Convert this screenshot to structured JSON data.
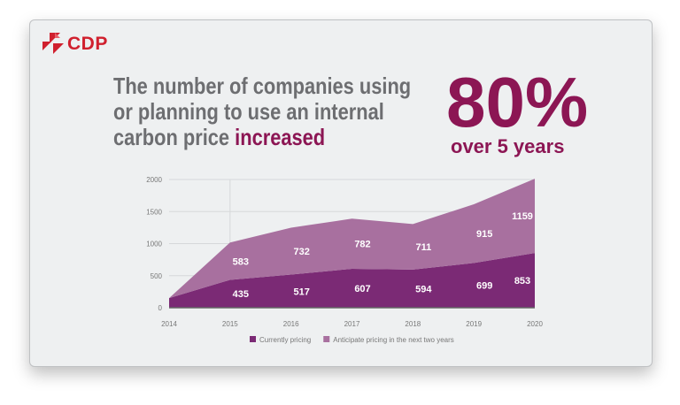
{
  "logo": {
    "text": "CDP",
    "color": "#d0202e"
  },
  "headline": {
    "text": "The number of companies using or planning to use an internal carbon price ",
    "emphasis": "increased"
  },
  "stat": {
    "value": "80%",
    "caption": "over 5 years",
    "color": "#8c1654"
  },
  "chart_data": {
    "type": "area",
    "stacked": true,
    "x": [
      "2014",
      "2015",
      "2016",
      "2017",
      "2018",
      "2019",
      "2020"
    ],
    "ylim": [
      0,
      2000
    ],
    "yticks": [
      "0",
      "500",
      "1000",
      "1500",
      "2000"
    ],
    "grid": true,
    "legend": "bottom",
    "series": [
      {
        "name": "Currently pricing",
        "values": [
          150,
          435,
          517,
          607,
          594,
          699,
          853
        ],
        "labels": [
          "",
          "435",
          "517",
          "607",
          "594",
          "699",
          "853"
        ],
        "color": "#7b2a75"
      },
      {
        "name": "Anticipate pricing in the next two years",
        "values": [
          0,
          583,
          732,
          782,
          711,
          915,
          1159
        ],
        "labels": [
          "",
          "583",
          "732",
          "782",
          "711",
          "915",
          "1159"
        ],
        "color": "#a8709f"
      }
    ]
  }
}
